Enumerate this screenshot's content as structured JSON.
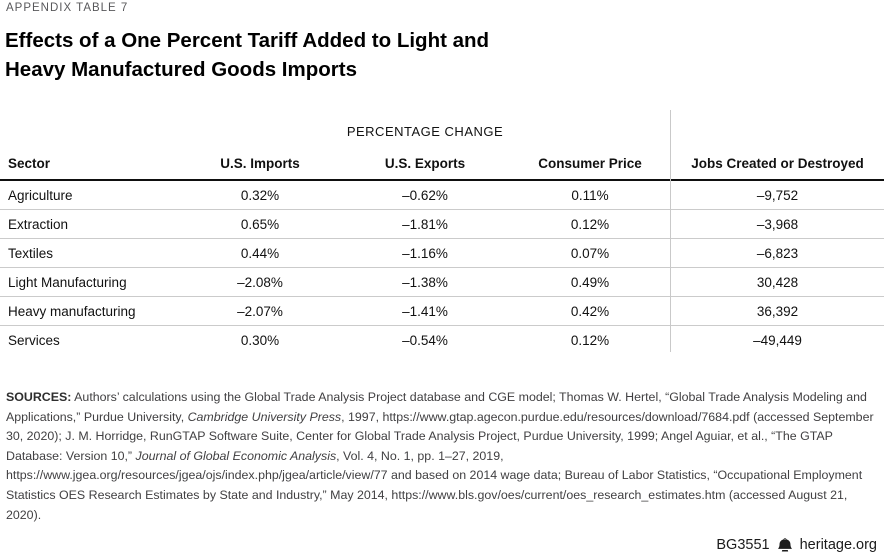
{
  "page": {
    "kicker": "APPENDIX TABLE 7",
    "title_line1": "Effects of a One Percent Tariff Added to Light and",
    "title_line2": "Heavy Manufactured Goods Imports"
  },
  "table": {
    "group_header": "PERCENTAGE CHANGE",
    "columns": [
      "Sector",
      "U.S. Imports",
      "U.S. Exports",
      "Consumer Price",
      "Jobs Created or Destroyed"
    ],
    "rows": [
      {
        "sector": "Agriculture",
        "us_imports": "0.32%",
        "us_exports": "–0.62%",
        "consumer_price": "0.11%",
        "jobs": "–9,752"
      },
      {
        "sector": "Extraction",
        "us_imports": "0.65%",
        "us_exports": "–1.81%",
        "consumer_price": "0.12%",
        "jobs": "–3,968"
      },
      {
        "sector": "Textiles",
        "us_imports": "0.44%",
        "us_exports": "–1.16%",
        "consumer_price": "0.07%",
        "jobs": "–6,823"
      },
      {
        "sector": "Light Manufacturing",
        "us_imports": "–2.08%",
        "us_exports": "–1.38%",
        "consumer_price": "0.49%",
        "jobs": "30,428"
      },
      {
        "sector": "Heavy manufacturing",
        "us_imports": "–2.07%",
        "us_exports": "–1.41%",
        "consumer_price": "0.42%",
        "jobs": "36,392"
      },
      {
        "sector": "Services",
        "us_imports": "0.30%",
        "us_exports": "–0.54%",
        "consumer_price": "0.12%",
        "jobs": "–49,449"
      }
    ]
  },
  "sources": {
    "label": "SOURCES:",
    "segments": [
      {
        "text": " Authors’ calculations using the Global Trade Analysis Project database and CGE model; Thomas W. Hertel, “Global Trade Analysis Modeling and Applications,” Purdue University, ",
        "italic": false
      },
      {
        "text": "Cambridge University Press",
        "italic": true
      },
      {
        "text": ", 1997, https://www.gtap.agecon.purdue.edu/resources/download/7684.pdf (accessed September 30, 2020); J. M. Horridge, RunGTAP Software Suite, Center for Global Trade Analysis Project, Purdue University, 1999; Angel Aguiar, et al., “The GTAP Database: Version 10,” ",
        "italic": false
      },
      {
        "text": "Journal of Global Economic Analysis",
        "italic": true
      },
      {
        "text": ", Vol. 4, No. 1, pp. 1–27, 2019, https://www.jgea.org/resources/jgea/ojs/index.php/jgea/article/view/77 and based on 2014 wage data; Bureau of Labor Statistics, “Occupational Employment Statistics OES Research Estimates by State and Industry,” May 2014, https://www.bls.gov/oes/current/oes_research_estimates.htm (accessed August 21, 2020).",
        "italic": false
      }
    ]
  },
  "footer": {
    "doc_id": "BG3551",
    "site": "heritage.org",
    "bell_icon": "liberty-bell-icon"
  },
  "colors": {
    "kicker_gray": "#58585b",
    "header_rule": "#0f0f0f",
    "row_separator": "#cbcbcb",
    "column_divider": "#c9c9c9",
    "sources_text": "#414042"
  }
}
